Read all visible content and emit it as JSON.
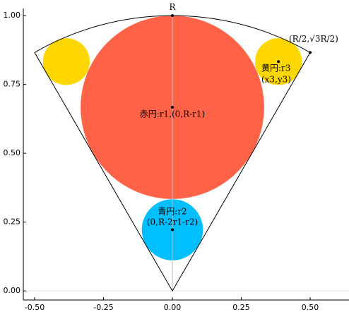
{
  "chart_data": {
    "type": "shapes",
    "xlim": [
      -0.541,
      0.641
    ],
    "ylim": [
      -0.033,
      1.026
    ],
    "xticks": [
      {
        "value": -0.5,
        "label": "-0.50"
      },
      {
        "value": -0.25,
        "label": "-0.25"
      },
      {
        "value": 0,
        "label": "0.00"
      },
      {
        "value": 0.25,
        "label": "0.25"
      },
      {
        "value": 0.5,
        "label": "0.50"
      }
    ],
    "yticks": [
      {
        "value": 0,
        "label": "0.00"
      },
      {
        "value": 0.25,
        "label": "0.25"
      },
      {
        "value": 0.5,
        "label": "0.50"
      },
      {
        "value": 0.75,
        "label": "0.75"
      },
      {
        "value": 1,
        "label": "1.00"
      }
    ],
    "sector": {
      "r": 1,
      "angles": [
        60,
        120
      ]
    },
    "circles": [
      {
        "cx": 0,
        "cy": 0.667,
        "r": 0.333,
        "color": "#ff6347"
      },
      {
        "cx": 0,
        "cy": 0.222,
        "r": 0.111,
        "color": "#00bfff"
      },
      {
        "cx": 0.385,
        "cy": 0.833,
        "r": 0.085,
        "color": "#ffd700"
      },
      {
        "cx": -0.385,
        "cy": 0.833,
        "r": 0.085,
        "color": "#ffd700"
      }
    ],
    "points": {
      "x": [
        0,
        0,
        0,
        0.385,
        0.5
      ],
      "y": [
        1,
        0.667,
        0.222,
        0.833,
        0.866
      ]
    },
    "annotations": [
      {
        "text": "R",
        "x": 0,
        "y": 1.03,
        "anchor": "middle"
      },
      {
        "text": "(R/2,√3R/2)",
        "x": 0.423,
        "y": 0.915,
        "anchor": "start"
      },
      {
        "text": "黄円:r3",
        "x": 0.323,
        "y": 0.808,
        "anchor": "start"
      },
      {
        "text": "(x3,y3)",
        "x": 0.323,
        "y": 0.767,
        "anchor": "start"
      },
      {
        "text": "赤円:r1,(0,R-r1)",
        "x": 0,
        "y": 0.641,
        "anchor": "middle"
      },
      {
        "text": "青円:r2",
        "x": 0,
        "y": 0.287,
        "anchor": "middle"
      },
      {
        "text": "(0,R-2r1-r2)",
        "x": 0,
        "y": 0.249,
        "anchor": "middle"
      }
    ]
  }
}
